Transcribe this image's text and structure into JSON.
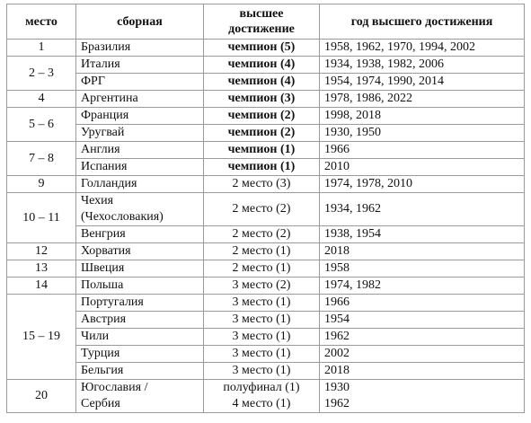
{
  "headers": {
    "place": "место",
    "team": "сборная",
    "achievement_line1": "высшее",
    "achievement_line2": "достижение",
    "years": "год высшего достижения"
  },
  "rows": [
    {
      "place": "1",
      "team": "Бразилия",
      "achievement": "чемпион (5)",
      "years": "1958, 1962, 1970, 1994, 2002"
    },
    {
      "place": "2 – 3",
      "team": "Италия",
      "achievement": "чемпион (4)",
      "years": "1934, 1938, 1982, 2006"
    },
    {
      "team": "ФРГ",
      "achievement": "чемпион (4)",
      "years": "1954, 1974, 1990, 2014"
    },
    {
      "place": "4",
      "team": "Аргентина",
      "achievement": "чемпион (3)",
      "years": "1978, 1986, 2022"
    },
    {
      "place": "5 – 6",
      "team": "Франция",
      "achievement": "чемпион (2)",
      "years": "1998, 2018"
    },
    {
      "team": "Уругвай",
      "achievement": "чемпион (2)",
      "years": "1930, 1950"
    },
    {
      "place": "7 – 8",
      "team": "Англия",
      "achievement": "чемпион (1)",
      "years": "1966"
    },
    {
      "team": "Испания",
      "achievement": "чемпион (1)",
      "years": "2010"
    },
    {
      "place": "9",
      "team": "Голландия",
      "achievement": "2 место (3)",
      "years": "1974, 1978, 2010"
    },
    {
      "place": "10 – 11",
      "team_line1": "Чехия",
      "team_line2": "(Чехословакия)",
      "achievement": "2 место (2)",
      "years": "1934, 1962"
    },
    {
      "team": "Венгрия",
      "achievement": "2 место (2)",
      "years": "1938, 1954"
    },
    {
      "place": "12",
      "team": "Хорватия",
      "achievement": "2 место (1)",
      "years": "2018"
    },
    {
      "place": "13",
      "team": "Швеция",
      "achievement": "2 место (1)",
      "years": "1958"
    },
    {
      "place": "14",
      "team": "Польша",
      "achievement": "3 место (2)",
      "years": "1974, 1982"
    },
    {
      "place": "15 – 19",
      "team": "Португалия",
      "achievement": "3 место (1)",
      "years": "1966"
    },
    {
      "team": "Австрия",
      "achievement": "3 место (1)",
      "years": "1954"
    },
    {
      "team": "Чили",
      "achievement": "3 место (1)",
      "years": "1962"
    },
    {
      "team": "Турция",
      "achievement": "3 место (1)",
      "years": "2002"
    },
    {
      "team": "Бельгия",
      "achievement": "3 место (1)",
      "years": "2018"
    },
    {
      "place": "20",
      "team_line1": "Югославия /",
      "team_line2": "Сербия",
      "achievement_line1": "полуфинал (1)",
      "achievement_line2": "4 место (1)",
      "years_line1": "1930",
      "years_line2": "1962"
    }
  ]
}
